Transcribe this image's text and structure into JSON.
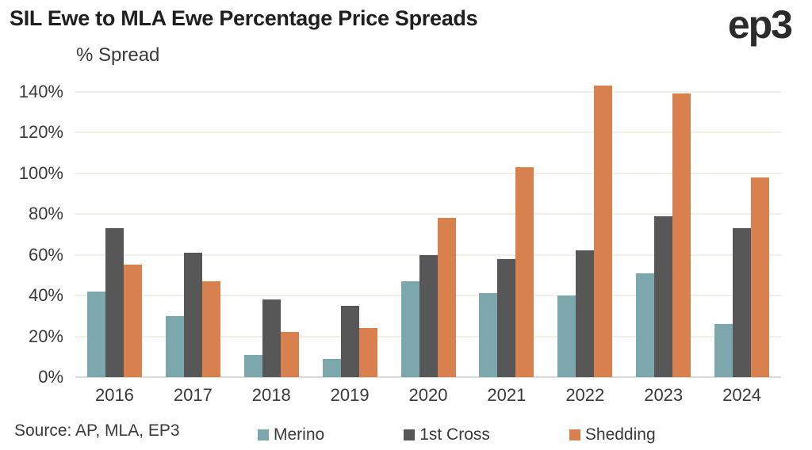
{
  "title": "SIL Ewe to MLA Ewe Percentage Price Spreads",
  "logo_text": "ep3",
  "source": "Source: AP, MLA, EP3",
  "colors": {
    "merino": "#7CA7AC",
    "first_cross": "#575757",
    "shedding": "#D8814F",
    "gridline": "#F2EFE6",
    "axis_line": "#D9D9D9",
    "text": "#3A3A3A",
    "title_text": "#1F1F1F"
  },
  "chart_data": {
    "type": "bar",
    "title": "SIL Ewe to MLA Ewe Percentage Price Spreads",
    "ylabel": "% Spread",
    "xlabel": "",
    "categories": [
      "2016",
      "2017",
      "2018",
      "2019",
      "2020",
      "2021",
      "2022",
      "2023",
      "2024"
    ],
    "series": [
      {
        "name": "Merino",
        "color": "#7CA7AC",
        "values": [
          42,
          30,
          11,
          9,
          47,
          41,
          40,
          51,
          26
        ]
      },
      {
        "name": "1st Cross",
        "color": "#575757",
        "values": [
          73,
          61,
          38,
          35,
          60,
          58,
          62,
          79,
          73
        ]
      },
      {
        "name": "Shedding",
        "color": "#D8814F",
        "values": [
          55,
          47,
          22,
          24,
          78,
          103,
          143,
          139,
          98
        ]
      }
    ],
    "ylim": [
      0,
      150
    ],
    "yticks": [
      0,
      20,
      40,
      60,
      80,
      100,
      120,
      140
    ],
    "ytick_suffix": "%",
    "grid": true,
    "legend_position": "bottom"
  }
}
